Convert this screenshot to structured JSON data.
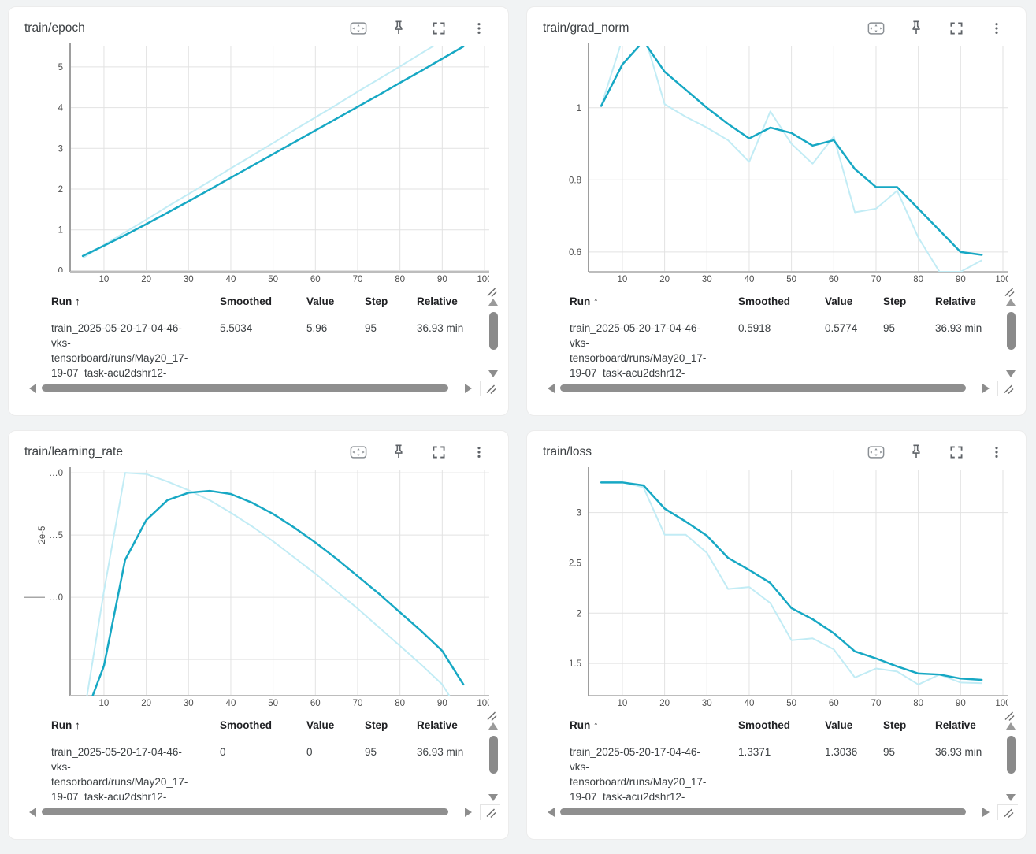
{
  "colors": {
    "page_bg": "#f1f3f4",
    "card_bg": "#ffffff",
    "smoothed_line": "#17a8c4",
    "raw_line": "#c2ecf5",
    "run_dot": "#24b3d1",
    "grid": "#e2e2e2",
    "axis_y": "#9e9e9e",
    "axis_x": "#bdbdbd"
  },
  "icons": {
    "toolbar": [
      "fit-to-domain",
      "pin",
      "fullscreen",
      "more-options"
    ],
    "other": [
      "resize-grip",
      "scroll-up",
      "scroll-down",
      "scroll-left",
      "scroll-right"
    ]
  },
  "table": {
    "headers": {
      "run": "Run ↑",
      "smoothed": "Smoothed",
      "value": "Value",
      "step": "Step",
      "relative": "Relative"
    }
  },
  "run": {
    "text": "train_2025-05-20-17-04-46-\nvks-\ntensorboard/runs/May20_17-\n19-07_task-acu2dshr12-"
  },
  "cards": [
    {
      "title": "train/epoch",
      "row": {
        "smoothed": "5.5034",
        "value": "5.96",
        "step": "95",
        "relative": "36.93 min"
      }
    },
    {
      "title": "train/grad_norm",
      "row": {
        "smoothed": "0.5918",
        "value": "0.5774",
        "step": "95",
        "relative": "36.93 min"
      }
    },
    {
      "title": "train/learning_rate",
      "row": {
        "smoothed": "0",
        "value": "0",
        "step": "95",
        "relative": "36.93 min"
      }
    },
    {
      "title": "train/loss",
      "row": {
        "smoothed": "1.3371",
        "value": "1.3036",
        "step": "95",
        "relative": "36.93 min"
      }
    }
  ],
  "chart_data": [
    {
      "type": "line",
      "title": "train/epoch",
      "x": [
        5,
        10,
        15,
        20,
        25,
        30,
        35,
        40,
        45,
        50,
        55,
        60,
        65,
        70,
        75,
        80,
        85,
        90,
        95
      ],
      "series": [
        {
          "name": "value",
          "values": [
            0.31,
            0.63,
            0.94,
            1.25,
            1.57,
            1.88,
            2.19,
            2.51,
            2.82,
            3.13,
            3.45,
            3.76,
            4.07,
            4.39,
            4.7,
            5.01,
            5.33,
            5.64,
            5.96
          ]
        },
        {
          "name": "smoothed",
          "values": [
            0.36,
            0.61,
            0.87,
            1.14,
            1.42,
            1.7,
            1.99,
            2.28,
            2.57,
            2.86,
            3.15,
            3.44,
            3.73,
            4.02,
            4.31,
            4.61,
            4.9,
            5.2,
            5.5
          ]
        }
      ],
      "xlim": [
        2,
        100
      ],
      "ylim": [
        -0.03,
        5.5
      ],
      "xticks": [
        10,
        20,
        30,
        40,
        50,
        60,
        70,
        80,
        90,
        100
      ],
      "yticks": [
        0,
        1,
        2,
        3,
        4,
        5
      ],
      "ytick_labels": [
        "0",
        "1",
        "2",
        "3",
        "4",
        "5"
      ],
      "grid": true,
      "legend": "none"
    },
    {
      "type": "line",
      "title": "train/grad_norm",
      "x": [
        5,
        10,
        15,
        20,
        25,
        30,
        35,
        40,
        45,
        50,
        55,
        60,
        65,
        70,
        75,
        80,
        85,
        90,
        95
      ],
      "series": [
        {
          "name": "value",
          "values": [
            1.005,
            1.19,
            1.21,
            1.01,
            0.975,
            0.945,
            0.91,
            0.85,
            0.99,
            0.9,
            0.845,
            0.92,
            0.71,
            0.72,
            0.77,
            0.64,
            0.545,
            0.545,
            0.577
          ]
        },
        {
          "name": "smoothed",
          "values": [
            1.005,
            1.12,
            1.185,
            1.1,
            1.05,
            1.0,
            0.955,
            0.915,
            0.945,
            0.93,
            0.895,
            0.91,
            0.83,
            0.78,
            0.78,
            0.72,
            0.66,
            0.6,
            0.592
          ]
        }
      ],
      "xlim": [
        2,
        100
      ],
      "ylim": [
        0.545,
        1.17
      ],
      "xticks": [
        10,
        20,
        30,
        40,
        50,
        60,
        70,
        80,
        90,
        100
      ],
      "yticks": [
        0.6,
        0.8,
        1
      ],
      "ytick_labels": [
        "0.6",
        "0.8",
        "1"
      ],
      "grid": true,
      "legend": "none"
    },
    {
      "type": "line",
      "title": "train/learning_rate",
      "y_unit": "1e-5",
      "x": [
        5,
        10,
        15,
        20,
        25,
        30,
        35,
        40,
        45,
        50,
        55,
        60,
        65,
        70,
        75,
        80,
        85,
        90,
        95
      ],
      "series": [
        {
          "name": "value",
          "values": [
            0.0,
            1.05,
            2.0,
            1.99,
            1.93,
            1.86,
            1.78,
            1.68,
            1.57,
            1.45,
            1.32,
            1.19,
            1.05,
            0.91,
            0.76,
            0.61,
            0.46,
            0.3,
            0.03
          ]
        },
        {
          "name": "smoothed",
          "values": [
            0.0,
            0.45,
            1.3,
            1.62,
            1.78,
            1.84,
            1.855,
            1.83,
            1.76,
            1.67,
            1.56,
            1.44,
            1.31,
            1.17,
            1.03,
            0.88,
            0.73,
            0.57,
            0.3
          ]
        }
      ],
      "xlim": [
        2,
        100
      ],
      "ylim": [
        0.21,
        2.02
      ],
      "xticks": [
        10,
        20,
        30,
        40,
        50,
        60,
        70,
        80,
        90,
        100
      ],
      "yticks": [
        2.0,
        1.5,
        1.0,
        0.5
      ],
      "ytick_labels": [
        "…0",
        "…5",
        "…0",
        ""
      ],
      "y_side_label": "2e-5",
      "y_side_label_at": 1.5,
      "y_side_dash_at": 1.0,
      "grid": true,
      "legend": "none"
    },
    {
      "type": "line",
      "title": "train/loss",
      "x": [
        5,
        10,
        15,
        20,
        25,
        30,
        35,
        40,
        45,
        50,
        55,
        60,
        65,
        70,
        75,
        80,
        85,
        90,
        95
      ],
      "series": [
        {
          "name": "value",
          "values": [
            3.3,
            3.3,
            3.25,
            2.78,
            2.78,
            2.6,
            2.24,
            2.26,
            2.1,
            1.73,
            1.75,
            1.64,
            1.36,
            1.45,
            1.42,
            1.29,
            1.39,
            1.31,
            1.3036
          ]
        },
        {
          "name": "smoothed",
          "values": [
            3.3,
            3.3,
            3.27,
            3.04,
            2.91,
            2.77,
            2.55,
            2.43,
            2.3,
            2.05,
            1.94,
            1.8,
            1.62,
            1.55,
            1.47,
            1.4,
            1.39,
            1.35,
            1.3371
          ]
        }
      ],
      "xlim": [
        2,
        100
      ],
      "ylim": [
        1.18,
        3.42
      ],
      "xticks": [
        10,
        20,
        30,
        40,
        50,
        60,
        70,
        80,
        90,
        100
      ],
      "yticks": [
        1.5,
        2,
        2.5,
        3
      ],
      "ytick_labels": [
        "1.5",
        "2",
        "2.5",
        "3"
      ],
      "grid": true,
      "legend": "none"
    }
  ]
}
